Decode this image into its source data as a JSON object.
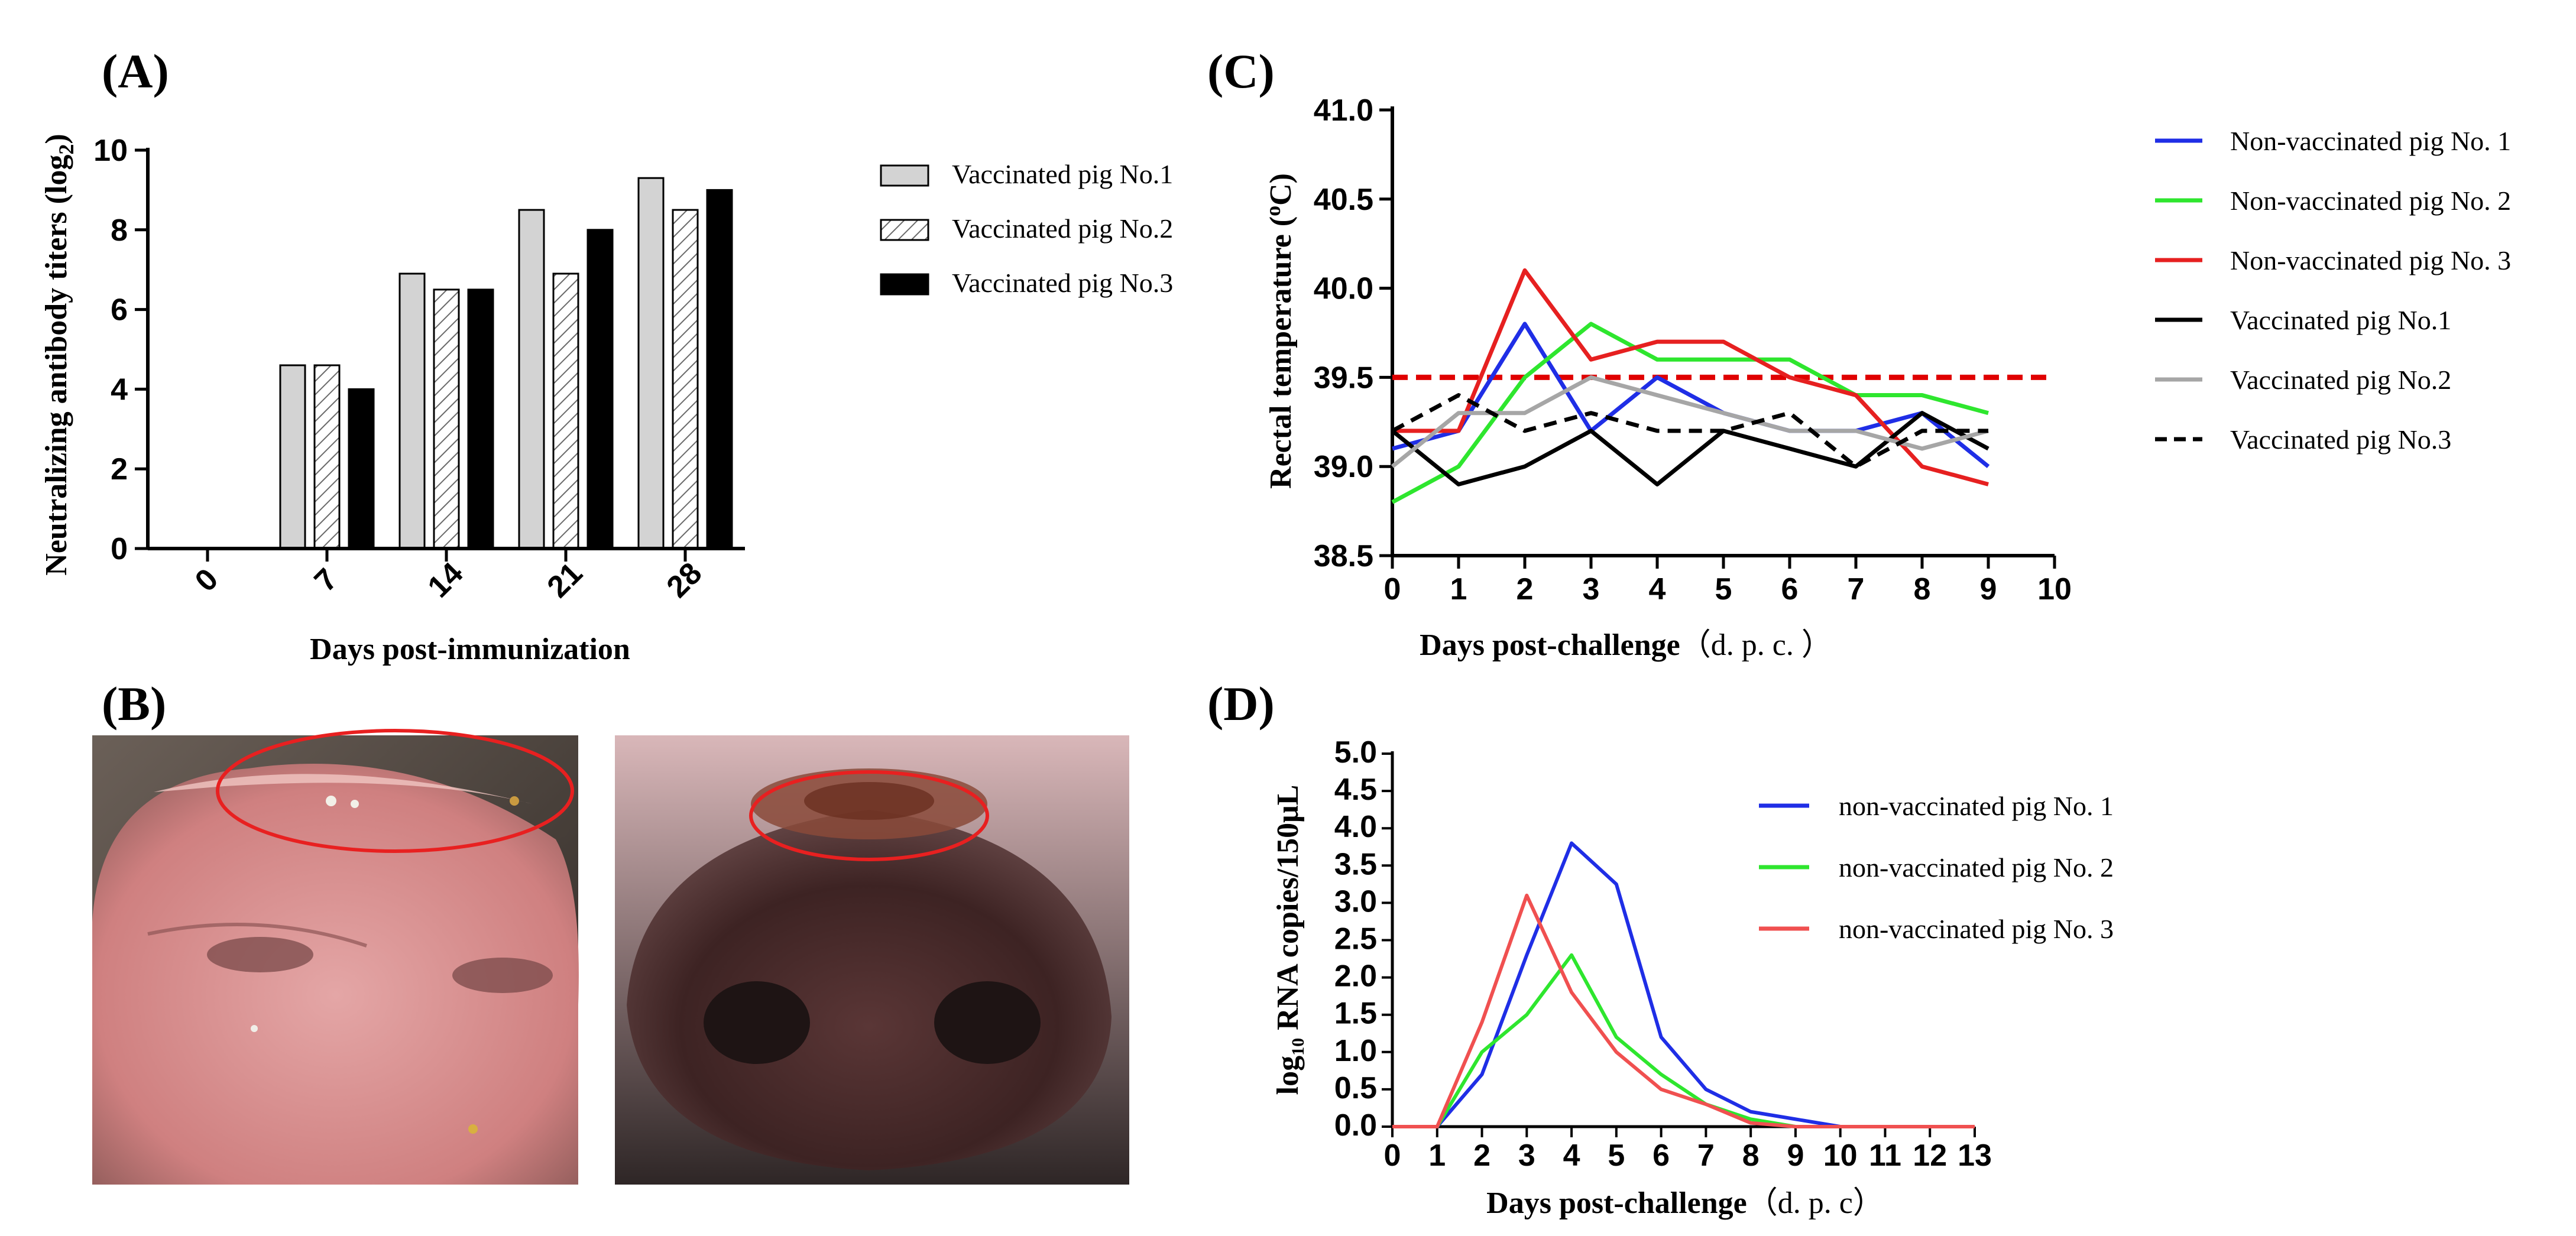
{
  "panels": {
    "A": "(A)",
    "B": "(B)",
    "C": "(C)",
    "D": "(D)"
  },
  "colors": {
    "blue": "#1f2ee6",
    "green": "#2ee62e",
    "red": "#e62020",
    "black": "#000000",
    "gray": "#a6a6a6",
    "bar1": "#d3d3d3",
    "threshold": "#e00000"
  },
  "chart_data": [
    {
      "panel": "A",
      "type": "bar",
      "xlabel": "Days post-immunization",
      "ylabel": "Neutralizing antibody titers (log",
      "ylabel_sub": "2",
      "ylabel_close": ")",
      "categories": [
        "0",
        "7",
        "14",
        "21",
        "28"
      ],
      "ylim": [
        0,
        10
      ],
      "yticks": [
        "0",
        "2",
        "4",
        "6",
        "8",
        "10"
      ],
      "series": [
        {
          "name": "Vaccinated pig No.1",
          "style": "light-gray",
          "values": [
            0,
            4.6,
            6.9,
            8.5,
            9.3
          ]
        },
        {
          "name": "Vaccinated pig No.2",
          "style": "hatched",
          "values": [
            0,
            4.6,
            6.5,
            6.9,
            8.5
          ]
        },
        {
          "name": "Vaccinated pig No.3",
          "style": "black",
          "values": [
            0,
            4.0,
            6.5,
            8.0,
            9.0
          ]
        }
      ]
    },
    {
      "panel": "C",
      "type": "line",
      "xlabel": "Days post-challenge",
      "xlabel_suffix": "（d. p. c. ）",
      "ylabel": "Rectal temperature (",
      "ylabel_sup": "o",
      "ylabel_close": "C)",
      "x": [
        0,
        1,
        2,
        3,
        4,
        5,
        6,
        7,
        8,
        9
      ],
      "xlim": [
        0,
        10
      ],
      "xticks": [
        "0",
        "1",
        "2",
        "3",
        "4",
        "5",
        "6",
        "7",
        "8",
        "9",
        "10"
      ],
      "ylim": [
        38.5,
        41.0
      ],
      "yticks": [
        "38.5",
        "39.0",
        "39.5",
        "40.0",
        "40.5",
        "41.0"
      ],
      "threshold": 39.5,
      "series": [
        {
          "name": "Non-vaccinated pig No. 1",
          "color": "#1f2ee6",
          "dash": false,
          "values": [
            39.1,
            39.2,
            39.8,
            39.2,
            39.5,
            39.3,
            39.2,
            39.2,
            39.3,
            39.0
          ]
        },
        {
          "name": "Non-vaccinated pig No. 2",
          "color": "#2ee62e",
          "dash": false,
          "values": [
            38.8,
            39.0,
            39.5,
            39.8,
            39.6,
            39.6,
            39.6,
            39.4,
            39.4,
            39.3
          ]
        },
        {
          "name": "Non-vaccinated pig No. 3",
          "color": "#e62020",
          "dash": false,
          "values": [
            39.2,
            39.2,
            40.1,
            39.6,
            39.7,
            39.7,
            39.5,
            39.4,
            39.0,
            38.9
          ]
        },
        {
          "name": "Vaccinated pig No.1",
          "color": "#000000",
          "dash": false,
          "values": [
            39.2,
            38.9,
            39.0,
            39.2,
            38.9,
            39.2,
            39.1,
            39.0,
            39.3,
            39.1
          ]
        },
        {
          "name": "Vaccinated pig No.2",
          "color": "#a6a6a6",
          "dash": false,
          "values": [
            39.0,
            39.3,
            39.3,
            39.5,
            39.4,
            39.3,
            39.2,
            39.2,
            39.1,
            39.2
          ]
        },
        {
          "name": "Vaccinated pig No.3",
          "color": "#000000",
          "dash": true,
          "values": [
            39.2,
            39.4,
            39.2,
            39.3,
            39.2,
            39.2,
            39.3,
            39.0,
            39.2,
            39.2
          ]
        }
      ]
    },
    {
      "panel": "D",
      "type": "line",
      "xlabel": "Days post-challenge",
      "xlabel_suffix": "（d. p. c）",
      "ylabel_pre": "log",
      "ylabel_sub": "10",
      "ylabel_post": " RNA copies/150μL",
      "x": [
        0,
        1,
        2,
        3,
        4,
        5,
        6,
        7,
        8,
        9,
        10,
        11,
        12,
        13
      ],
      "xlim": [
        0,
        13
      ],
      "xticks": [
        "0",
        "1",
        "2",
        "3",
        "4",
        "5",
        "6",
        "7",
        "8",
        "9",
        "10",
        "11",
        "12",
        "13"
      ],
      "ylim": [
        0,
        5
      ],
      "yticks": [
        "0.0",
        "0.5",
        "1.0",
        "1.5",
        "2.0",
        "2.5",
        "3.0",
        "3.5",
        "4.0",
        "4.5",
        "5.0"
      ],
      "series": [
        {
          "name": "non-vaccinated pig No. 1",
          "color": "#1f2ee6",
          "values": [
            0,
            0,
            0.7,
            2.3,
            3.8,
            3.25,
            1.2,
            0.5,
            0.2,
            0.1,
            0,
            0,
            0,
            0
          ]
        },
        {
          "name": "non-vaccinated pig No. 2",
          "color": "#2ee62e",
          "values": [
            0,
            0,
            1.0,
            1.5,
            2.3,
            1.2,
            0.7,
            0.3,
            0.1,
            0,
            0,
            0,
            0,
            0
          ]
        },
        {
          "name": "non-vaccinated pig No. 3",
          "color": "#f05050",
          "values": [
            0,
            0,
            1.4,
            3.1,
            1.8,
            1.0,
            0.5,
            0.3,
            0.05,
            0,
            0,
            0,
            0,
            0
          ]
        }
      ]
    }
  ]
}
